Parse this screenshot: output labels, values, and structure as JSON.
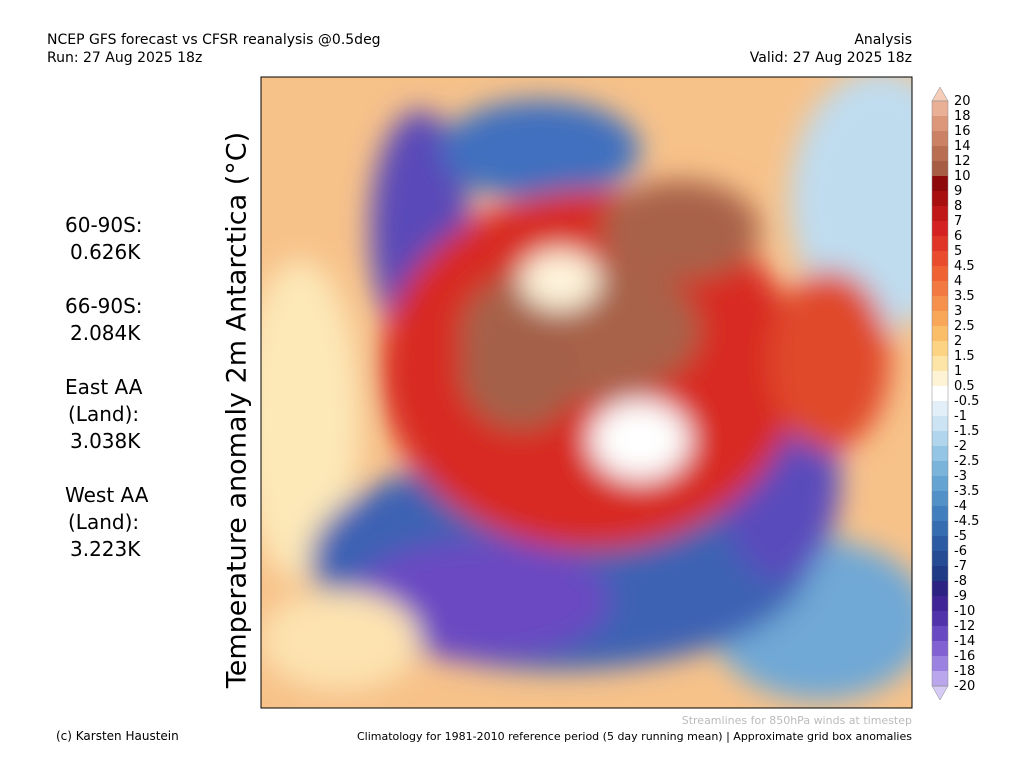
{
  "header": {
    "title": "NCEP GFS forecast vs CFSR reanalysis @0.5deg",
    "run": "Run: 27 Aug 2025 18z",
    "mode": "Analysis",
    "valid": "Valid: 27 Aug 2025 18z"
  },
  "axis_label": "Temperature anomaly 2m Antarctica (°C)",
  "stats": [
    {
      "label_lines": [
        "60-90S:"
      ],
      "value": "0.626K"
    },
    {
      "label_lines": [
        "66-90S:"
      ],
      "value": "2.084K"
    },
    {
      "label_lines": [
        "East AA",
        "(Land):"
      ],
      "value": "3.038K"
    },
    {
      "label_lines": [
        "West AA",
        "(Land):"
      ],
      "value": "3.223K"
    }
  ],
  "colorbar": {
    "labels": [
      "20",
      "18",
      "16",
      "14",
      "12",
      "10",
      "9",
      "8",
      "7",
      "6",
      "5",
      "4.5",
      "4",
      "3.5",
      "3",
      "2.5",
      "2",
      "1.5",
      "1",
      "0.5",
      "-0.5",
      "-1",
      "-1.5",
      "-2",
      "-2.5",
      "-3",
      "-3.5",
      "-4",
      "-4.5",
      "-5",
      "-6",
      "-7",
      "-8",
      "-9",
      "-10",
      "-12",
      "-14",
      "-16",
      "-18",
      "-20"
    ],
    "colors": [
      "#f6cdb8",
      "#eab096",
      "#dc977a",
      "#ca8164",
      "#b96e52",
      "#a65d44",
      "#8e0a0a",
      "#a81010",
      "#c01818",
      "#d42222",
      "#e03628",
      "#e94c2c",
      "#ef6234",
      "#f27a42",
      "#f5914c",
      "#f8a758",
      "#fabd68",
      "#fcd283",
      "#fde5a8",
      "#fff3d6",
      "#ffffff",
      "#e2eff8",
      "#cbe3f2",
      "#b1d5ec",
      "#95c5e4",
      "#7ab4db",
      "#64a3d2",
      "#5191c8",
      "#417ebd",
      "#366cb0",
      "#2d5ba3",
      "#264b95",
      "#1f3b86",
      "#2c2282",
      "#3f2596",
      "#5232aa",
      "#6a4ac2",
      "#8262d2",
      "#9c82e0",
      "#baa6ec",
      "#d6cbf6"
    ]
  },
  "footer": {
    "credit": "(c) Karsten Haustein",
    "streamlines": "Streamlines for 850hPa winds at timestep",
    "climatology": "Climatology for 1981-2010 reference period (5 day running mean) | Approximate grid box anomalies"
  }
}
